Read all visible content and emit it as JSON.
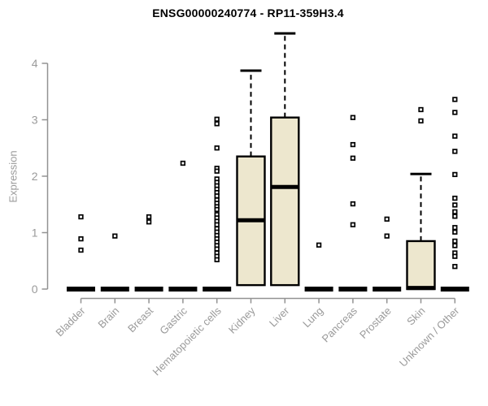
{
  "chart_data": {
    "type": "boxplot",
    "title": "ENSG00000240774 - RP11-359H3.4",
    "ylabel": "Expression",
    "xlabel": "",
    "yticks": [
      0,
      1,
      2,
      3,
      4
    ],
    "ylim": [
      0,
      4.6
    ],
    "grid": false,
    "categories": [
      "Bladder",
      "Brain",
      "Breast",
      "Gastric",
      "Hematopoietic cells",
      "Kidney",
      "Liver",
      "Lung",
      "Pancreas",
      "Prostate",
      "Skin",
      "Unknown / Other"
    ],
    "boxes": [
      {
        "category": "Bladder",
        "q1": 0,
        "median": 0,
        "q3": 0,
        "whisker_low": 0,
        "whisker_high": 0,
        "collapsed": true,
        "outliers": [
          1.28,
          0.89,
          0.69
        ]
      },
      {
        "category": "Brain",
        "q1": 0,
        "median": 0,
        "q3": 0,
        "whisker_low": 0,
        "whisker_high": 0,
        "collapsed": true,
        "outliers": [
          0.94
        ]
      },
      {
        "category": "Breast",
        "q1": 0,
        "median": 0,
        "q3": 0,
        "whisker_low": 0,
        "whisker_high": 0,
        "collapsed": true,
        "outliers": [
          1.28,
          1.19
        ]
      },
      {
        "category": "Gastric",
        "q1": 0,
        "median": 0,
        "q3": 0,
        "whisker_low": 0,
        "whisker_high": 0,
        "collapsed": true,
        "outliers": [
          2.23
        ]
      },
      {
        "category": "Hematopoietic cells",
        "q1": 0,
        "median": 0,
        "q3": 0,
        "whisker_low": 0,
        "whisker_high": 0,
        "collapsed": true,
        "outliers": [
          3.01,
          2.93,
          2.5,
          2.14,
          2.09,
          1.95,
          1.89,
          1.83,
          1.77,
          1.71,
          1.65,
          1.58,
          1.52,
          1.46,
          1.41,
          1.32,
          1.26,
          1.2,
          1.14,
          1.07,
          1.01,
          0.95,
          0.89,
          0.83,
          0.77,
          0.71,
          0.64,
          0.58,
          0.52
        ]
      },
      {
        "category": "Kidney",
        "q1": 0.07,
        "median": 1.22,
        "q3": 2.35,
        "whisker_low": 0,
        "whisker_high": 3.87,
        "collapsed": false,
        "outliers": []
      },
      {
        "category": "Liver",
        "q1": 0.07,
        "median": 1.81,
        "q3": 3.04,
        "whisker_low": 0,
        "whisker_high": 4.53,
        "collapsed": false,
        "outliers": []
      },
      {
        "category": "Lung",
        "q1": 0,
        "median": 0,
        "q3": 0,
        "whisker_low": 0,
        "whisker_high": 0,
        "collapsed": true,
        "outliers": [
          0.78
        ]
      },
      {
        "category": "Pancreas",
        "q1": 0,
        "median": 0,
        "q3": 0,
        "whisker_low": 0,
        "whisker_high": 0,
        "collapsed": true,
        "outliers": [
          3.04,
          2.56,
          2.32,
          1.51,
          1.14
        ]
      },
      {
        "category": "Prostate",
        "q1": 0,
        "median": 0,
        "q3": 0,
        "whisker_low": 0,
        "whisker_high": 0,
        "collapsed": true,
        "outliers": [
          1.24,
          0.94
        ]
      },
      {
        "category": "Skin",
        "q1": 0,
        "median": 0.02,
        "q3": 0.85,
        "whisker_low": 0,
        "whisker_high": 2.04,
        "collapsed": false,
        "outliers": [
          3.18,
          2.98
        ]
      },
      {
        "category": "Unknown / Other",
        "q1": 0,
        "median": 0,
        "q3": 0,
        "whisker_low": 0,
        "whisker_high": 0,
        "collapsed": true,
        "outliers": [
          3.36,
          3.13,
          2.71,
          2.44,
          2.03,
          1.61,
          1.49,
          1.37,
          1.29,
          1.09,
          1.01,
          0.85,
          0.77,
          0.64,
          0.58,
          0.4
        ]
      }
    ],
    "legend": null,
    "colors": {
      "box_fill": "#EDE7CE",
      "box_stroke": "#000000",
      "median": "#000000",
      "whisker": "#000000",
      "outlier_stroke": "#000000",
      "outlier_fill": "#ffffff",
      "axis": "#929292",
      "tick_label": "#9a9a9a",
      "title": "#000000",
      "background": "#ffffff"
    }
  }
}
